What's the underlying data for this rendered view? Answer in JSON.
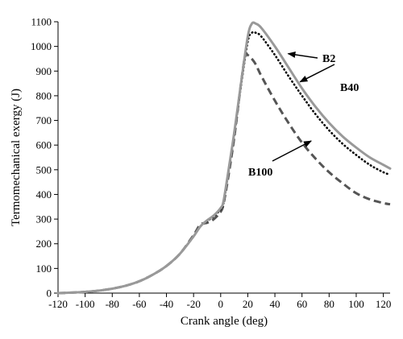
{
  "chart_data": {
    "type": "line",
    "title": "",
    "xlabel": "Crank angle (deg)",
    "ylabel": "Termomechanical exergy (J)",
    "xlim": [
      -120,
      125
    ],
    "ylim": [
      0,
      1100
    ],
    "xticks": [
      -120,
      -100,
      -80,
      -60,
      -40,
      -20,
      0,
      20,
      40,
      60,
      80,
      100,
      120
    ],
    "yticks": [
      0,
      100,
      200,
      300,
      400,
      500,
      600,
      700,
      800,
      900,
      1000,
      1100
    ],
    "grid": false,
    "legend": "none",
    "series": [
      {
        "name": "B2",
        "style": "solid",
        "color": "#999999",
        "x": [
          -120,
          -110,
          -100,
          -90,
          -80,
          -70,
          -60,
          -50,
          -40,
          -30,
          -20,
          -15,
          -10,
          -5,
          0,
          2,
          5,
          10,
          15,
          20,
          23,
          26,
          30,
          40,
          50,
          60,
          70,
          80,
          90,
          100,
          110,
          120,
          125
        ],
        "y": [
          0,
          2,
          5,
          10,
          18,
          30,
          48,
          75,
          110,
          160,
          230,
          270,
          295,
          315,
          345,
          370,
          470,
          650,
          850,
          1040,
          1092,
          1092,
          1075,
          1000,
          915,
          830,
          755,
          690,
          635,
          590,
          550,
          520,
          505
        ]
      },
      {
        "name": "B40",
        "style": "dotted",
        "color": "#000000",
        "x": [
          -120,
          -110,
          -100,
          -90,
          -80,
          -70,
          -60,
          -50,
          -40,
          -30,
          -20,
          -15,
          -10,
          -5,
          0,
          2,
          5,
          10,
          15,
          20,
          23,
          26,
          30,
          40,
          50,
          60,
          70,
          80,
          90,
          100,
          110,
          120,
          125
        ],
        "y": [
          0,
          2,
          5,
          10,
          18,
          30,
          48,
          75,
          110,
          160,
          230,
          270,
          292,
          312,
          340,
          362,
          465,
          640,
          840,
          1020,
          1055,
          1055,
          1040,
          965,
          880,
          800,
          725,
          660,
          605,
          560,
          520,
          490,
          480
        ]
      },
      {
        "name": "B100",
        "style": "dashed",
        "color": "#555555",
        "x": [
          -120,
          -110,
          -100,
          -90,
          -80,
          -70,
          -60,
          -50,
          -40,
          -30,
          -20,
          -15,
          -10,
          -5,
          0,
          2,
          5,
          10,
          15,
          18,
          20,
          25,
          30,
          40,
          50,
          60,
          70,
          80,
          90,
          100,
          110,
          120,
          125
        ],
        "y": [
          0,
          2,
          5,
          10,
          18,
          30,
          48,
          75,
          110,
          160,
          235,
          278,
          285,
          300,
          330,
          360,
          450,
          630,
          850,
          960,
          965,
          935,
          880,
          780,
          690,
          610,
          545,
          490,
          445,
          405,
          380,
          365,
          360
        ]
      }
    ],
    "annotations": [
      {
        "text": "B2",
        "series": "B2",
        "at_x": 45
      },
      {
        "text": "B40",
        "series": "B40",
        "at_x": 55
      },
      {
        "text": "B100",
        "series": "B100",
        "at_x": 62
      }
    ]
  }
}
